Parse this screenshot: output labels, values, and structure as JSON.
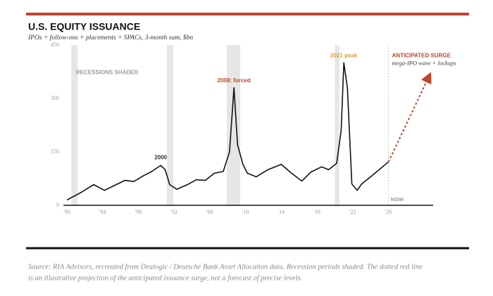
{
  "chart_data": {
    "type": "line",
    "title": "U.S. EQUITY ISSUANCE",
    "subtitle": "IPOs + follow-ons + placements + SPACs, 3-month sum, $bn",
    "source": [
      "Source: RIA Advisors, recreated from Dealogic / Deutsche Bank Asset Allocation data. Recession periods shaded. The dotted red line",
      "is an illustrative projection of the anticipated issuance surge, not a forecast of precise levels."
    ],
    "xlim": [
      1989.6,
      2031
    ],
    "ylim": [
      0,
      450
    ],
    "yticks": [
      0,
      150,
      300,
      450
    ],
    "xticks": [
      {
        "value": 1990,
        "label": "'90"
      },
      {
        "value": 1994,
        "label": "'94"
      },
      {
        "value": 1998,
        "label": "'98"
      },
      {
        "value": 2002,
        "label": "'02"
      },
      {
        "value": 2006,
        "label": "'06"
      },
      {
        "value": 2010,
        "label": "'10"
      },
      {
        "value": 2014,
        "label": "'14"
      },
      {
        "value": 2018,
        "label": "'18"
      },
      {
        "value": 2022,
        "label": "'22"
      },
      {
        "value": 2026,
        "label": "'26"
      }
    ],
    "recessions": [
      [
        1990.5,
        1991.2
      ],
      [
        2001.2,
        2001.9
      ],
      [
        2007.9,
        2009.4
      ],
      [
        2020.0,
        2020.5
      ]
    ],
    "series": [
      {
        "color": "#111111",
        "x": [
          1990,
          1991.5,
          1993,
          1994.2,
          1995.5,
          1996.5,
          1997.5,
          1998.5,
          1999.5,
          2000.5,
          2001,
          2001.5,
          2002.3,
          2003.5,
          2004.5,
          2005.5,
          2006.5,
          2007.5,
          2008.2,
          2008.7,
          2009.1,
          2009.7,
          2010.2,
          2011.2,
          2012.5,
          2014,
          2015,
          2016.3,
          2017.3,
          2018.5,
          2019.3,
          2020.2,
          2020.7,
          2021,
          2021.4,
          2021.9,
          2022.5,
          2023,
          2024,
          2026
        ],
        "values": [
          15,
          35,
          58,
          42,
          58,
          70,
          67,
          82,
          95,
          112,
          100,
          58,
          45,
          58,
          72,
          70,
          90,
          95,
          150,
          330,
          170,
          115,
          90,
          80,
          100,
          115,
          93,
          68,
          93,
          108,
          100,
          118,
          210,
          400,
          330,
          60,
          42,
          60,
          80,
          122
        ]
      },
      {
        "color": "#c0452b",
        "dashed": true,
        "arrow": true,
        "x": [
          2026,
          2030.5
        ],
        "values": [
          122,
          360
        ]
      }
    ],
    "now": {
      "x": 2026,
      "label": "NOW"
    },
    "annotations": [
      {
        "text": "RECESSIONS SHADED",
        "x": 1991,
        "y": 372,
        "color": "#999999",
        "weight": "bold"
      },
      {
        "text": "2000",
        "x": 2000.5,
        "y": 133,
        "color": "#333333",
        "weight": "bold"
      },
      {
        "text": "2008: forced",
        "x": 2008.7,
        "y": 350,
        "color": "#c0452b",
        "weight": "bold"
      },
      {
        "text": "2021 peak",
        "x": 2021,
        "y": 420,
        "color": "#d9a030",
        "weight": "bold"
      },
      {
        "text": "ANTICIPATED SURGE",
        "x": 2026.4,
        "y": 420,
        "color": "#c0452b",
        "weight": "bold"
      },
      {
        "text": "mega-IPO wave + lockups",
        "x": 2026.4,
        "y": 398,
        "color": "#333333",
        "style": "italic"
      }
    ]
  }
}
